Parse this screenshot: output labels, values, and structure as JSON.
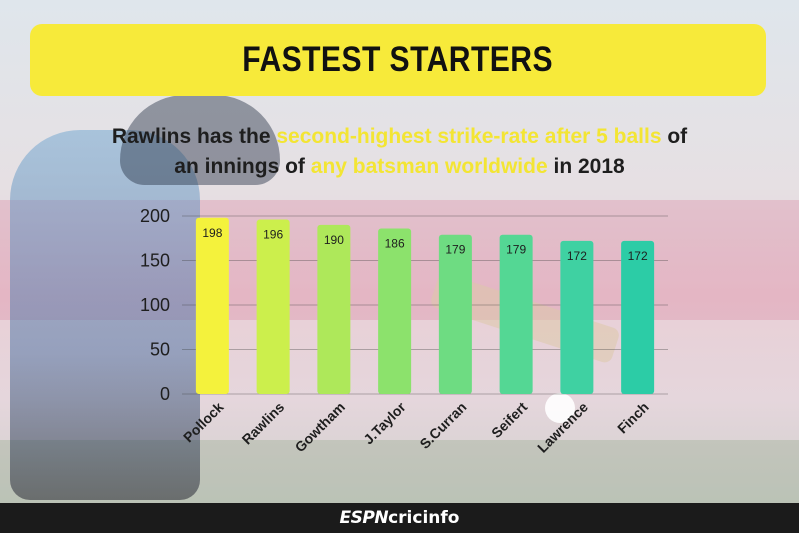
{
  "title": "FASTEST STARTERS",
  "subtitle": {
    "line1_a": "Rawlins has the ",
    "line1_hl": "second-highest strike-rate after 5 balls",
    "line1_b": " of",
    "line2_a": "an innings of ",
    "line2_hl": "any batsman worldwide",
    "line2_b": " in 2018"
  },
  "chart_data": {
    "type": "bar",
    "categories": [
      "Pollock",
      "Rawlins",
      "Gowtham",
      "J.Taylor",
      "S.Curran",
      "Seifert",
      "Lawrence",
      "Finch"
    ],
    "values": [
      198,
      196,
      190,
      186,
      179,
      179,
      172,
      172
    ],
    "colors": [
      "#f4f23c",
      "#ccef4c",
      "#aee85a",
      "#8ce26c",
      "#6edc82",
      "#54d794",
      "#3fd1a2",
      "#2ccca6"
    ],
    "yticks": [
      0,
      50,
      100,
      150,
      200
    ],
    "ylim": [
      0,
      200
    ],
    "grid": true,
    "title": "",
    "xlabel": "",
    "ylabel": ""
  },
  "footer": {
    "logo_espn": "ESPN",
    "logo_rest": "cricinfo"
  }
}
